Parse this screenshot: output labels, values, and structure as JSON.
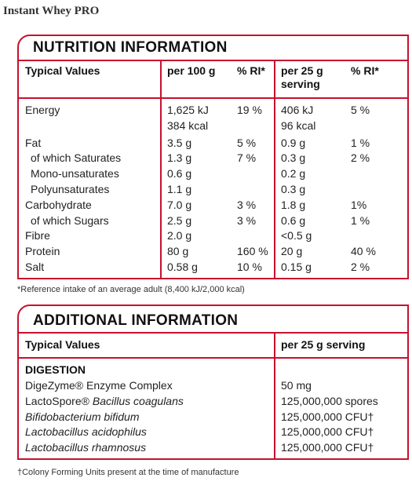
{
  "page_title": "Instant Whey PRO",
  "nutrition": {
    "title": "NUTRITION INFORMATION",
    "header": [
      "Typical Values",
      "per 100 g",
      "% RI*",
      "per 25 g serving",
      "% RI*"
    ],
    "rows": [
      [
        "Energy",
        "1,625 kJ",
        "19 %",
        "406 kJ",
        "5 %"
      ],
      [
        null,
        "384 kcal",
        null,
        "96 kcal",
        null
      ],
      [
        "Fat",
        "3.5 g",
        "5 %",
        "0.9 g",
        "1 %"
      ],
      [
        "of which Saturates",
        "1.3 g",
        "7 %",
        "0.3 g",
        "2 %"
      ],
      [
        "Mono-unsaturates",
        "0.6 g",
        null,
        "0.2 g",
        null
      ],
      [
        "Polyunsaturates",
        "1.1 g",
        null,
        "0.3 g",
        null
      ],
      [
        "Carbohydrate",
        "7.0 g",
        "3 %",
        "1.8 g",
        "1%"
      ],
      [
        "of which Sugars",
        "2.5 g",
        "3 %",
        "0.6 g",
        "1 %"
      ],
      [
        "Fibre",
        "2.0 g",
        null,
        "<0.5 g",
        null
      ],
      [
        "Protein",
        "80 g",
        "160 %",
        "20 g",
        "40 %"
      ],
      [
        "Salt",
        "0.58 g",
        "10 %",
        "0.15 g",
        "2 %"
      ]
    ],
    "footnote": "*Reference intake of an average adult (8,400 kJ/2,000 kcal)"
  },
  "additional": {
    "title": "ADDITIONAL INFORMATION",
    "header": [
      "Typical Values",
      "per 25 g serving"
    ],
    "section": "DIGESTION",
    "rows": [
      {
        "name": "DigeZyme® Enzyme Complex",
        "value": "50 mg"
      },
      {
        "name": "LactoSpore®",
        "name_italic": "Bacillus coagulans",
        "value": "125,000,000 spores"
      },
      {
        "name_italic": "Bifidobacterium bifidum",
        "value": "125,000,000 CFU†"
      },
      {
        "name_italic": "Lactobacillus acidophilus",
        "value": "125,000,000 CFU†"
      },
      {
        "name_italic": "Lactobacillus rhamnosus",
        "value": "125,000,000 CFU†"
      }
    ],
    "footnote": "†Colony Forming Units present at the time of manufacture"
  }
}
